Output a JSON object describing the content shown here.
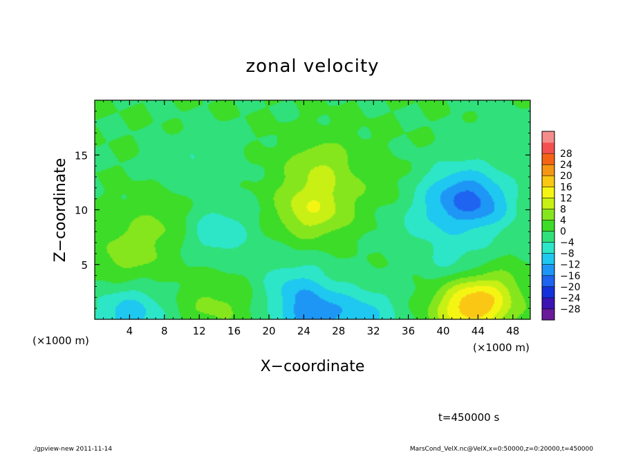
{
  "chart_data": {
    "type": "heatmap",
    "title": "zonal velocity",
    "xlabel": "X−coordinate",
    "ylabel": "Z−coordinate",
    "x_unit_left": "(×1000 m)",
    "x_unit_right": "(×1000 m)",
    "xlim": [
      0,
      50
    ],
    "ylim": [
      0,
      20
    ],
    "x_ticks": [
      4,
      8,
      12,
      16,
      20,
      24,
      28,
      32,
      36,
      40,
      44,
      48
    ],
    "x_tick_labels": [
      "4",
      "8",
      "12",
      "16",
      "20",
      "24",
      "28",
      "32",
      "36",
      "40",
      "44",
      "48"
    ],
    "y_ticks": [
      5,
      10,
      15
    ],
    "y_tick_labels": [
      "5",
      "10",
      "15"
    ],
    "colorbar": {
      "levels": [
        -32,
        -28,
        -24,
        -20,
        -16,
        -12,
        -8,
        -4,
        0,
        4,
        8,
        12,
        16,
        20,
        24,
        28,
        32
      ],
      "labels": [
        "28",
        "24",
        "20",
        "16",
        "12",
        "8",
        "4",
        "0",
        "−4",
        "−8",
        "−12",
        "−16",
        "−20",
        "−24",
        "−28"
      ],
      "label_values": [
        28,
        24,
        20,
        16,
        12,
        8,
        4,
        0,
        -4,
        -8,
        -12,
        -16,
        -20,
        -24,
        -28
      ],
      "colors": [
        "#6a1b9a",
        "#3c14b4",
        "#1432dc",
        "#1e64f0",
        "#1e96f5",
        "#1ec8f0",
        "#2de6c8",
        "#30e07a",
        "#3cdc28",
        "#86e61e",
        "#c8f014",
        "#f5f514",
        "#fac814",
        "#f59614",
        "#f56414",
        "#f55050",
        "#f58c8c"
      ]
    },
    "field_features": [
      {
        "x": 25,
        "z": 10,
        "u": 11
      },
      {
        "x": 26,
        "z": 14,
        "u": 7
      },
      {
        "x": 43,
        "z": 1.0,
        "u": 15
      },
      {
        "x": 45,
        "z": 2.5,
        "u": 8
      },
      {
        "x": 4,
        "z": 6,
        "u": 6
      },
      {
        "x": 14,
        "z": 1.5,
        "u": 5
      },
      {
        "x": 8,
        "z": 9,
        "u": 4
      },
      {
        "x": 44,
        "z": 10.5,
        "u": -13
      },
      {
        "x": 41,
        "z": 12,
        "u": -7
      },
      {
        "x": 42,
        "z": 5,
        "u": -6
      },
      {
        "x": 14,
        "z": 8,
        "u": -7
      },
      {
        "x": 12,
        "z": 14,
        "u": -4
      },
      {
        "x": 4,
        "z": 0.5,
        "u": -10
      },
      {
        "x": 25,
        "z": 0.3,
        "u": -11
      },
      {
        "x": 31,
        "z": 0.5,
        "u": -8
      },
      {
        "x": 23,
        "z": 3,
        "u": -7
      },
      {
        "x": 38,
        "z": 9,
        "u": -5
      },
      {
        "x": 47,
        "z": 16,
        "u": -3
      },
      {
        "x": 33,
        "z": 12,
        "u": 2
      }
    ]
  },
  "annotations": {
    "time": "t=450000 s",
    "footer_left": "./gpview-new  2011-11-14",
    "footer_right": "MarsCond_VelX.nc@VelX,x=0:50000,z=0:20000,t=450000"
  }
}
